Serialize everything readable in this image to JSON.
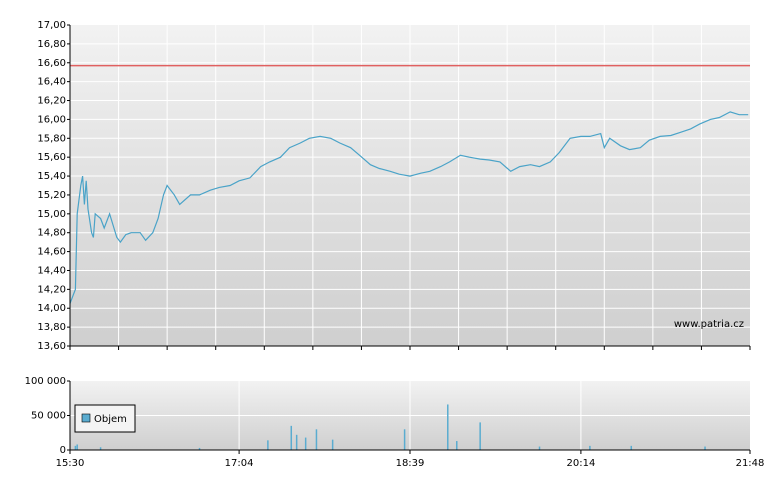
{
  "chart_data": [
    {
      "type": "line",
      "watermark": "www.patria.cz",
      "x": [
        "15:30",
        "15:31",
        "15:33",
        "15:34",
        "15:36",
        "15:37",
        "15:38",
        "15:39",
        "15:40",
        "15:42",
        "15:43",
        "15:44",
        "15:47",
        "15:49",
        "15:52",
        "15:56",
        "15:58",
        "16:01",
        "16:04",
        "16:09",
        "16:12",
        "16:16",
        "16:19",
        "16:22",
        "16:24",
        "16:28",
        "16:31",
        "16:37",
        "16:42",
        "16:48",
        "16:53",
        "16:59",
        "17:04",
        "17:10",
        "17:16",
        "17:21",
        "17:27",
        "17:32",
        "17:38",
        "17:43",
        "17:49",
        "17:55",
        "18:00",
        "18:06",
        "18:11",
        "18:17",
        "18:22",
        "18:28",
        "18:33",
        "18:39",
        "18:45",
        "18:50",
        "18:56",
        "19:01",
        "19:07",
        "19:12",
        "19:18",
        "19:23",
        "19:29",
        "19:35",
        "19:40",
        "19:46",
        "19:51",
        "19:57",
        "20:02",
        "20:08",
        "20:14",
        "20:19",
        "20:25",
        "20:27",
        "20:30",
        "20:36",
        "20:41",
        "20:47",
        "20:52",
        "20:58",
        "21:04",
        "21:09",
        "21:15",
        "21:20",
        "21:26",
        "21:31",
        "21:37",
        "21:42",
        "21:47"
      ],
      "series": [
        {
          "color": "#4aa3c8",
          "values": [
            14.05,
            14.1,
            14.2,
            15.0,
            15.3,
            15.4,
            15.1,
            15.35,
            15.05,
            14.8,
            14.75,
            15.0,
            14.95,
            14.85,
            15.0,
            14.75,
            14.7,
            14.78,
            14.8,
            14.8,
            14.72,
            14.8,
            14.95,
            15.2,
            15.3,
            15.2,
            15.1,
            15.2,
            15.2,
            15.25,
            15.28,
            15.3,
            15.35,
            15.38,
            15.5,
            15.55,
            15.6,
            15.7,
            15.75,
            15.8,
            15.82,
            15.8,
            15.75,
            15.7,
            15.62,
            15.52,
            15.48,
            15.45,
            15.42,
            15.4,
            15.43,
            15.45,
            15.5,
            15.55,
            15.62,
            15.6,
            15.58,
            15.57,
            15.55,
            15.45,
            15.5,
            15.52,
            15.5,
            15.55,
            15.65,
            15.8,
            15.82,
            15.82,
            15.85,
            15.7,
            15.8,
            15.72,
            15.68,
            15.7,
            15.78,
            15.82,
            15.83,
            15.86,
            15.9,
            15.95,
            16.0,
            16.02,
            16.08,
            16.05,
            16.05
          ]
        }
      ],
      "xlim": [
        "15:30",
        "21:48"
      ],
      "ylim": [
        13.6,
        17.0
      ],
      "yticks": [
        {
          "value": 13.6,
          "label": "13,60"
        },
        {
          "value": 13.8,
          "label": "13,80"
        },
        {
          "value": 14.0,
          "label": "14,00"
        },
        {
          "value": 14.2,
          "label": "14,20"
        },
        {
          "value": 14.4,
          "label": "14,40"
        },
        {
          "value": 14.6,
          "label": "14,60"
        },
        {
          "value": 14.8,
          "label": "14,80"
        },
        {
          "value": 15.0,
          "label": "15,00"
        },
        {
          "value": 15.2,
          "label": "15,20"
        },
        {
          "value": 15.4,
          "label": "15,40"
        },
        {
          "value": 15.6,
          "label": "15,60"
        },
        {
          "value": 15.8,
          "label": "15,80"
        },
        {
          "value": 16.0,
          "label": "16,00"
        },
        {
          "value": 16.2,
          "label": "16,20"
        },
        {
          "value": 16.4,
          "label": "16,40"
        },
        {
          "value": 16.6,
          "label": "16,60"
        },
        {
          "value": 16.8,
          "label": "16,80"
        },
        {
          "value": 17.0,
          "label": "17,00"
        }
      ],
      "reference_line": {
        "value": 16.57,
        "color": "#e06060"
      },
      "grid": true
    },
    {
      "type": "bar",
      "x": [
        "15:33",
        "15:34",
        "15:47",
        "16:42",
        "17:20",
        "17:33",
        "17:36",
        "17:41",
        "17:47",
        "17:56",
        "18:36",
        "19:00",
        "19:05",
        "19:18",
        "19:51",
        "20:19",
        "20:42",
        "21:23"
      ],
      "series": [
        {
          "name": "Objem",
          "color": "#5aacd0",
          "values": [
            6000,
            8000,
            4000,
            3000,
            14000,
            35000,
            22000,
            18000,
            30000,
            15000,
            30000,
            66000,
            13000,
            40000,
            5000,
            6000,
            6000,
            5000
          ]
        }
      ],
      "xlim": [
        "15:30",
        "21:48"
      ],
      "xticks": [
        "15:30",
        "17:04",
        "18:39",
        "20:14",
        "21:48"
      ],
      "ylim": [
        0,
        100000
      ],
      "yticks": [
        0,
        {
          "value": 50000,
          "label": "50 000"
        },
        {
          "value": 100000,
          "label": "100 000"
        }
      ],
      "legend": "upper left",
      "grid": true
    }
  ]
}
